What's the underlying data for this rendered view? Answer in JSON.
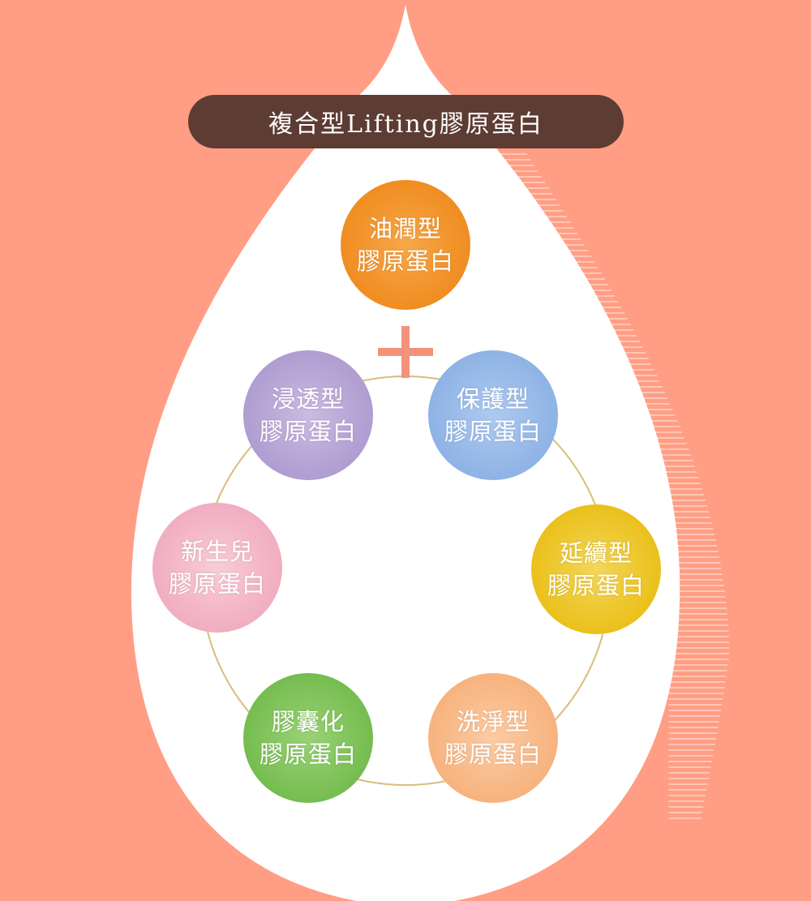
{
  "title": "複合型Lifting膠原蛋白",
  "colors": {
    "background": "#ff9e84",
    "drop": "#ffffff",
    "title_bar": "#5d3c33",
    "plus": "#f4927b",
    "ring": "#d9bd7a"
  },
  "top_item": {
    "line1": "油潤型",
    "line2": "膠原蛋白",
    "color": "#f08a1e"
  },
  "ring_items": [
    {
      "line1": "保護型",
      "line2": "膠原蛋白",
      "color": "#8fb4e4"
    },
    {
      "line1": "延續型",
      "line2": "膠原蛋白",
      "color": "#ecc21d"
    },
    {
      "line1": "洗淨型",
      "line2": "膠原蛋白",
      "color": "#f8b682"
    },
    {
      "line1": "膠囊化",
      "line2": "膠原蛋白",
      "color": "#78bf53"
    },
    {
      "line1": "新生兒",
      "line2": "膠原蛋白",
      "color": "#f2b1c3"
    },
    {
      "line1": "浸透型",
      "line2": "膠原蛋白",
      "color": "#b29fd1"
    }
  ],
  "plus_icon": "plus-icon"
}
